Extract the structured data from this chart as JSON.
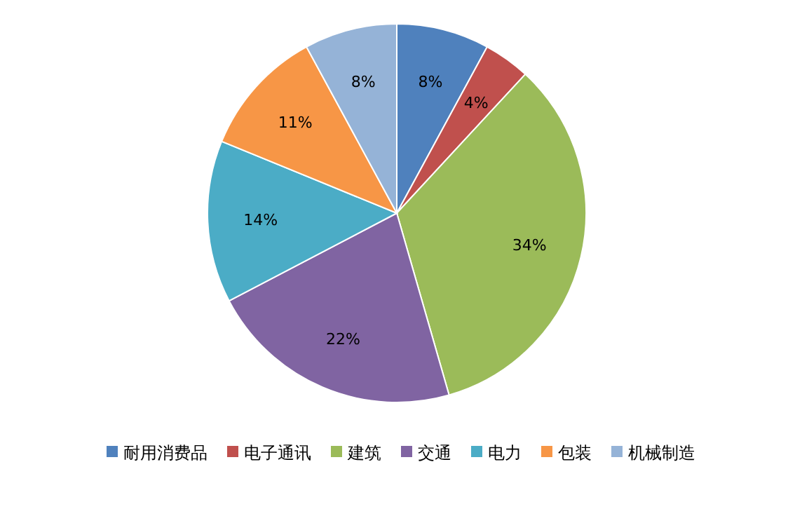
{
  "chart_data": {
    "type": "pie",
    "categories": [
      "耐用消费品",
      "电子通讯",
      "建筑",
      "交通",
      "电力",
      "包装",
      "机械制造"
    ],
    "values": [
      8,
      4,
      34,
      22,
      14,
      11,
      8
    ],
    "colors": [
      "#4f81bd",
      "#c0504d",
      "#9bbb59",
      "#8064a2",
      "#4bacc6",
      "#f79646",
      "#95b3d7"
    ],
    "value_labels": [
      "8%",
      "4%",
      "34%",
      "22%",
      "14%",
      "11%",
      "8%"
    ],
    "legend": "bottom"
  }
}
